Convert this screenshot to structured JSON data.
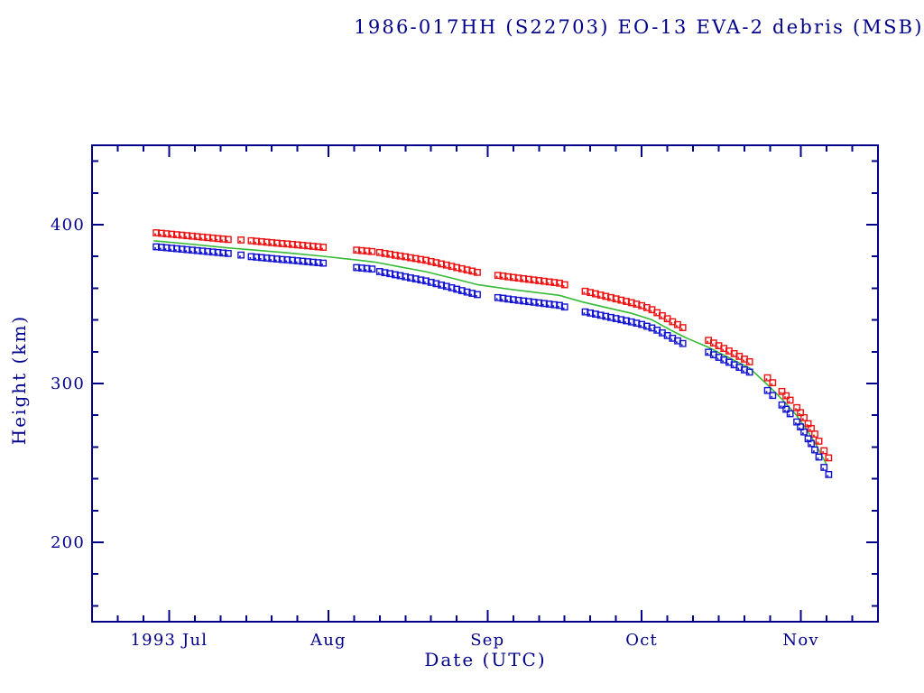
{
  "chart_data": {
    "type": "scatter",
    "title": "1986-017HH (S22703) EO-13 EVA-2 debris (MSB)",
    "xlabel": "Date (UTC)",
    "ylabel": "Height (km)",
    "grid": false,
    "legend": "none",
    "units": {
      "x": "days since 1993-06-16",
      "y": "km"
    },
    "colors": {
      "text_and_axis": "#00008b",
      "background": "#ffffff",
      "apogee": "#ee1010",
      "perigee": "#1212d2",
      "mean_line": "#35bb35"
    },
    "x_axis": {
      "start": "1993-06-16",
      "end": "1993-11-16",
      "span_days": 153,
      "major_ticks": [
        {
          "day": 15,
          "label": "1993 Jul"
        },
        {
          "day": 46,
          "label": "Aug"
        },
        {
          "day": 77,
          "label": "Sep"
        },
        {
          "day": 107,
          "label": "Oct"
        },
        {
          "day": 138,
          "label": "Nov"
        }
      ],
      "minor_tick_days": [
        5,
        10,
        20,
        25,
        30,
        35,
        40,
        51,
        56,
        61,
        66,
        71,
        82,
        87,
        92,
        97,
        102,
        112,
        117,
        122,
        127,
        132,
        143,
        148
      ]
    },
    "y_axis": {
      "min": 150,
      "max": 450,
      "major_ticks": [
        200,
        300,
        400
      ],
      "minor_tick_step": 20
    },
    "series": [
      {
        "name": "apogee height (red squares)",
        "type": "scatter",
        "marker": "open-square-with-dot",
        "color_key": "apogee",
        "points": [
          [
            12.5,
            394.2
          ],
          [
            13.5,
            393.9
          ],
          [
            14.5,
            393.6
          ],
          [
            15.5,
            393.3
          ],
          [
            16.5,
            393.0
          ],
          [
            17.5,
            392.7
          ],
          [
            18.5,
            392.4
          ],
          [
            19.5,
            392.1
          ],
          [
            20.5,
            391.8
          ],
          [
            21.5,
            391.5
          ],
          [
            22.5,
            391.2
          ],
          [
            23.5,
            390.9
          ],
          [
            24.5,
            390.6
          ],
          [
            25.5,
            390.3
          ],
          [
            26.5,
            390.0
          ],
          [
            29,
            389.7
          ],
          [
            31,
            389.2
          ],
          [
            32,
            388.9
          ],
          [
            33,
            388.6
          ],
          [
            34,
            388.3
          ],
          [
            35,
            388.0
          ],
          [
            36,
            387.7
          ],
          [
            37,
            387.4
          ],
          [
            38,
            387.2
          ],
          [
            39,
            386.9
          ],
          [
            40,
            386.6
          ],
          [
            41,
            386.3
          ],
          [
            42,
            386.0
          ],
          [
            43,
            385.7
          ],
          [
            44,
            385.4
          ],
          [
            45,
            385.1
          ],
          [
            51.5,
            383.3
          ],
          [
            52.5,
            383.0
          ],
          [
            53.5,
            382.7
          ],
          [
            54.5,
            382.4
          ],
          [
            56,
            381.8
          ],
          [
            57,
            381.2
          ],
          [
            58,
            380.7
          ],
          [
            59,
            380.1
          ],
          [
            60,
            379.6
          ],
          [
            61,
            379.1
          ],
          [
            62,
            378.5
          ],
          [
            63,
            378.0
          ],
          [
            64,
            377.4
          ],
          [
            65,
            376.9
          ],
          [
            66,
            376.1
          ],
          [
            67,
            375.4
          ],
          [
            68,
            374.6
          ],
          [
            69,
            373.9
          ],
          [
            70,
            373.1
          ],
          [
            71,
            372.3
          ],
          [
            72,
            371.6
          ],
          [
            73,
            370.8
          ],
          [
            74,
            370.1
          ],
          [
            75,
            369.3
          ],
          [
            79,
            367.4
          ],
          [
            80,
            367.0
          ],
          [
            81,
            366.5
          ],
          [
            82,
            366.1
          ],
          [
            83,
            365.7
          ],
          [
            84,
            365.3
          ],
          [
            85,
            364.9
          ],
          [
            86,
            364.5
          ],
          [
            87,
            364.1
          ],
          [
            88,
            363.7
          ],
          [
            89,
            363.3
          ],
          [
            90,
            362.9
          ],
          [
            91,
            362.5
          ],
          [
            92,
            361.5
          ],
          [
            96,
            357.4
          ],
          [
            97,
            356.6
          ],
          [
            98,
            355.8
          ],
          [
            99,
            355.0
          ],
          [
            100,
            354.2
          ],
          [
            101,
            353.4
          ],
          [
            102,
            352.6
          ],
          [
            103,
            351.8
          ],
          [
            104,
            351.0
          ],
          [
            105,
            350.2
          ],
          [
            106,
            349.3
          ],
          [
            107,
            348.3
          ],
          [
            108,
            347.1
          ],
          [
            109,
            345.8
          ],
          [
            110,
            343.9
          ],
          [
            111,
            342.0
          ],
          [
            112,
            340.1
          ],
          [
            113,
            338.2
          ],
          [
            114,
            336.4
          ],
          [
            115,
            334.5
          ],
          [
            120,
            326.5
          ],
          [
            121,
            324.8
          ],
          [
            122,
            323.1
          ],
          [
            123,
            321.4
          ],
          [
            124,
            319.8
          ],
          [
            125,
            318.1
          ],
          [
            126,
            316.4
          ],
          [
            127,
            314.7
          ],
          [
            128,
            313.0
          ],
          [
            131.5,
            302.9
          ],
          [
            132.5,
            299.8
          ],
          [
            134.3,
            294.3
          ],
          [
            135.1,
            291.6
          ],
          [
            135.9,
            288.8
          ],
          [
            137.2,
            284.1
          ],
          [
            137.9,
            281.0
          ],
          [
            138.6,
            277.8
          ],
          [
            139.4,
            274.0
          ],
          [
            140,
            271.0
          ],
          [
            140.7,
            267.5
          ],
          [
            141.5,
            263.0
          ],
          [
            142.5,
            257.0
          ],
          [
            143.4,
            252.5
          ]
        ]
      },
      {
        "name": "perigee height (blue squares)",
        "type": "scatter",
        "marker": "open-square-with-dot",
        "color_key": "perigee",
        "points": [
          [
            12.5,
            385.4
          ],
          [
            13.5,
            385.1
          ],
          [
            14.5,
            384.8
          ],
          [
            15.5,
            384.5
          ],
          [
            16.5,
            384.2
          ],
          [
            17.5,
            383.9
          ],
          [
            18.5,
            383.6
          ],
          [
            19.5,
            383.3
          ],
          [
            20.5,
            383.0
          ],
          [
            21.5,
            382.7
          ],
          [
            22.5,
            382.4
          ],
          [
            23.5,
            382.1
          ],
          [
            24.5,
            381.8
          ],
          [
            25.5,
            381.5
          ],
          [
            26.5,
            381.2
          ],
          [
            29,
            380.2
          ],
          [
            31,
            379.2
          ],
          [
            32,
            378.9
          ],
          [
            33,
            378.6
          ],
          [
            34,
            378.3
          ],
          [
            35,
            378.0
          ],
          [
            36,
            377.7
          ],
          [
            37,
            377.4
          ],
          [
            38,
            377.2
          ],
          [
            39,
            376.9
          ],
          [
            40,
            376.6
          ],
          [
            41,
            376.3
          ],
          [
            42,
            376.0
          ],
          [
            43,
            375.7
          ],
          [
            44,
            375.4
          ],
          [
            45,
            375.1
          ],
          [
            51.5,
            372.3
          ],
          [
            52.5,
            372.0
          ],
          [
            53.5,
            371.7
          ],
          [
            54.5,
            371.4
          ],
          [
            56,
            369.8
          ],
          [
            57,
            369.1
          ],
          [
            58,
            368.5
          ],
          [
            59,
            367.8
          ],
          [
            60,
            367.2
          ],
          [
            61,
            366.5
          ],
          [
            62,
            365.8
          ],
          [
            63,
            365.2
          ],
          [
            64,
            364.5
          ],
          [
            65,
            363.9
          ],
          [
            66,
            363.0
          ],
          [
            67,
            362.2
          ],
          [
            68,
            361.3
          ],
          [
            69,
            360.5
          ],
          [
            70,
            359.6
          ],
          [
            71,
            358.7
          ],
          [
            72,
            357.8
          ],
          [
            73,
            356.9
          ],
          [
            74,
            356.1
          ],
          [
            75,
            355.3
          ],
          [
            79,
            353.4
          ],
          [
            80,
            353.0
          ],
          [
            81,
            352.5
          ],
          [
            82,
            352.1
          ],
          [
            83,
            351.7
          ],
          [
            84,
            351.3
          ],
          [
            85,
            350.9
          ],
          [
            86,
            350.5
          ],
          [
            87,
            350.1
          ],
          [
            88,
            349.7
          ],
          [
            89,
            349.3
          ],
          [
            90,
            348.9
          ],
          [
            91,
            348.5
          ],
          [
            92,
            347.5
          ],
          [
            96,
            344.4
          ],
          [
            97,
            343.7
          ],
          [
            98,
            343.0
          ],
          [
            99,
            342.3
          ],
          [
            100,
            341.6
          ],
          [
            101,
            340.9
          ],
          [
            102,
            340.2
          ],
          [
            103,
            339.5
          ],
          [
            104,
            338.8
          ],
          [
            105,
            338.1
          ],
          [
            106,
            337.3
          ],
          [
            107,
            336.5
          ],
          [
            108,
            335.4
          ],
          [
            109,
            334.3
          ],
          [
            110,
            332.9
          ],
          [
            111,
            331.2
          ],
          [
            112,
            329.5
          ],
          [
            113,
            327.8
          ],
          [
            114,
            326.2
          ],
          [
            115,
            324.5
          ],
          [
            120,
            319.0
          ],
          [
            121,
            317.4
          ],
          [
            122,
            315.8
          ],
          [
            123,
            314.2
          ],
          [
            124,
            312.7
          ],
          [
            125,
            311.1
          ],
          [
            126,
            309.5
          ],
          [
            127,
            307.9
          ],
          [
            128,
            306.5
          ],
          [
            131.5,
            294.9
          ],
          [
            132.5,
            291.8
          ],
          [
            134.3,
            285.8
          ],
          [
            135.1,
            283.1
          ],
          [
            135.9,
            280.3
          ],
          [
            137.2,
            275.1
          ],
          [
            137.9,
            272.0
          ],
          [
            138.6,
            268.8
          ],
          [
            139.4,
            264.5
          ],
          [
            140,
            261.5
          ],
          [
            140.7,
            257.5
          ],
          [
            141.5,
            253.0
          ],
          [
            142.5,
            246.5
          ],
          [
            143.4,
            242.0
          ]
        ]
      },
      {
        "name": "mean height fit (green line)",
        "type": "line",
        "color_key": "mean_line",
        "points": [
          [
            12,
            389.9
          ],
          [
            20,
            387.5
          ],
          [
            27,
            385.2
          ],
          [
            31,
            384.2
          ],
          [
            38,
            382.3
          ],
          [
            45,
            380.1
          ],
          [
            51.5,
            377.8
          ],
          [
            55,
            376.5
          ],
          [
            60,
            373.4
          ],
          [
            65,
            370.4
          ],
          [
            70,
            366.4
          ],
          [
            75,
            362.3
          ],
          [
            81,
            359.5
          ],
          [
            86,
            357.5
          ],
          [
            91,
            355.5
          ],
          [
            95.5,
            351.3
          ],
          [
            100,
            347.9
          ],
          [
            105,
            344.2
          ],
          [
            109,
            340.1
          ],
          [
            113,
            333.0
          ],
          [
            115.5,
            329.0
          ],
          [
            120,
            322.8
          ],
          [
            124,
            316.2
          ],
          [
            128,
            309.8
          ],
          [
            131.8,
            298.3
          ],
          [
            134.4,
            289.8
          ],
          [
            137,
            280.5
          ],
          [
            139,
            271.5
          ],
          [
            140.8,
            262.3
          ],
          [
            142,
            255.0
          ],
          [
            142.9,
            249.5
          ]
        ]
      }
    ]
  }
}
